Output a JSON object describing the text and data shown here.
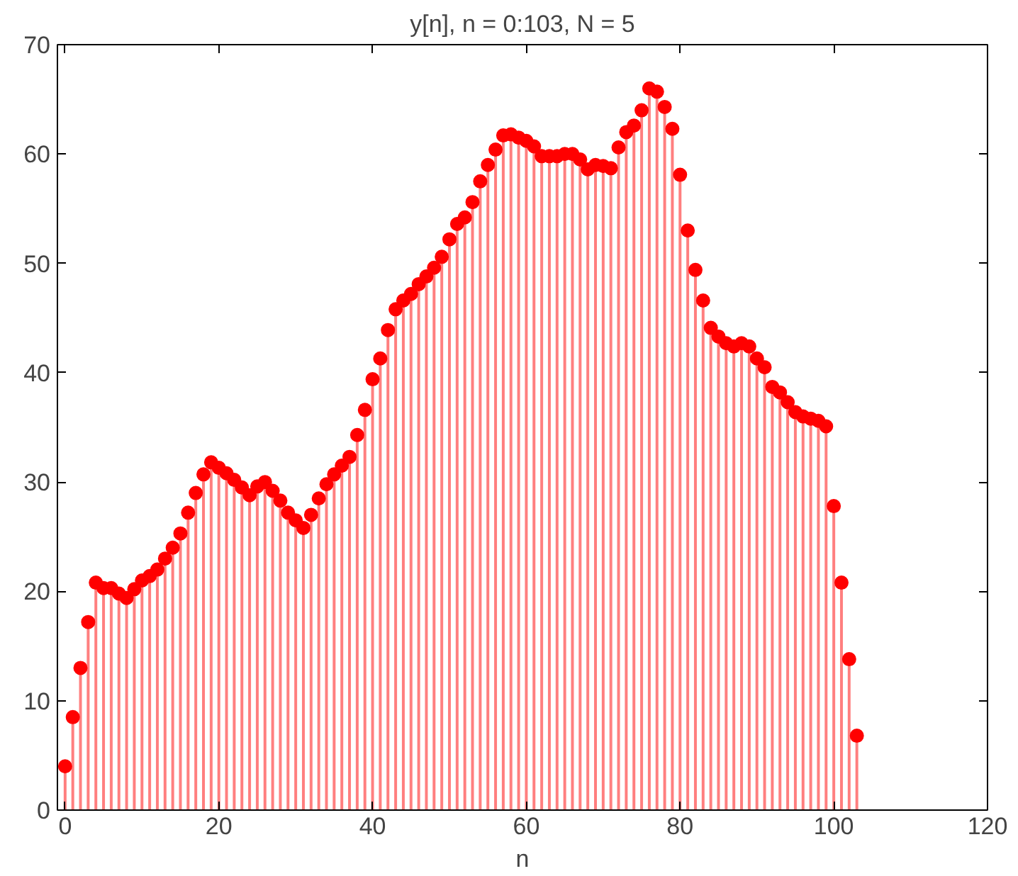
{
  "chart_data": {
    "type": "lollipop",
    "title": "y[n], n = 0:103, N = 5",
    "xlabel": "n",
    "x": [
      0,
      1,
      2,
      3,
      4,
      5,
      6,
      7,
      8,
      9,
      10,
      11,
      12,
      13,
      14,
      15,
      16,
      17,
      18,
      19,
      20,
      21,
      22,
      23,
      24,
      25,
      26,
      27,
      28,
      29,
      30,
      31,
      32,
      33,
      34,
      35,
      36,
      37,
      38,
      39,
      40,
      41,
      42,
      43,
      44,
      45,
      46,
      47,
      48,
      49,
      50,
      51,
      52,
      53,
      54,
      55,
      56,
      57,
      58,
      59,
      60,
      61,
      62,
      63,
      64,
      65,
      66,
      67,
      68,
      69,
      70,
      71,
      72,
      73,
      74,
      75,
      76,
      77,
      78,
      79,
      80,
      81,
      82,
      83,
      84,
      85,
      86,
      87,
      88,
      89,
      90,
      91,
      92,
      93,
      94,
      95,
      96,
      97,
      98,
      99,
      100,
      101,
      102,
      103
    ],
    "series": [
      {
        "color": "#ff0000",
        "values": [
          4.0,
          8.5,
          13,
          17.2,
          20.8,
          20.3,
          20.3,
          19.8,
          19.4,
          20.2,
          21,
          21.4,
          22,
          23,
          24,
          25.3,
          27.2,
          29,
          30.7,
          31.8,
          31.3,
          30.8,
          30.2,
          29.5,
          28.8,
          29.6,
          30,
          29.2,
          28.3,
          27.2,
          26.5,
          25.8,
          27,
          28.5,
          29.8,
          30.7,
          31.5,
          32.3,
          34.3,
          36.6,
          39.4,
          41.3,
          43.9,
          45.8,
          46.6,
          47.2,
          48.1,
          48.8,
          49.6,
          50.6,
          52.2,
          53.6,
          54.2,
          55.6,
          57.5,
          59,
          60.4,
          61.7,
          61.8,
          61.5,
          61.2,
          60.7,
          59.8,
          59.8,
          59.8,
          60,
          60,
          59.5,
          58.6,
          59,
          58.9,
          58.7,
          60.6,
          62,
          62.6,
          64,
          66,
          65.7,
          64.3,
          62.3,
          58.1,
          53,
          49.4,
          46.6,
          44.1,
          43.3,
          42.7,
          42.4,
          42.7,
          42.4,
          41.3,
          40.5,
          38.7,
          38.2,
          37.3,
          36.4,
          36,
          35.8,
          35.6,
          35.1,
          27.8,
          20.8,
          13.8,
          6.8
        ]
      }
    ],
    "xlim": [
      -1,
      120
    ],
    "ylim": [
      0,
      70
    ],
    "xticks": [
      0,
      20,
      40,
      60,
      80,
      100,
      120
    ],
    "yticks": [
      0,
      10,
      20,
      30,
      40,
      50,
      60,
      70
    ],
    "marker": "circle"
  }
}
